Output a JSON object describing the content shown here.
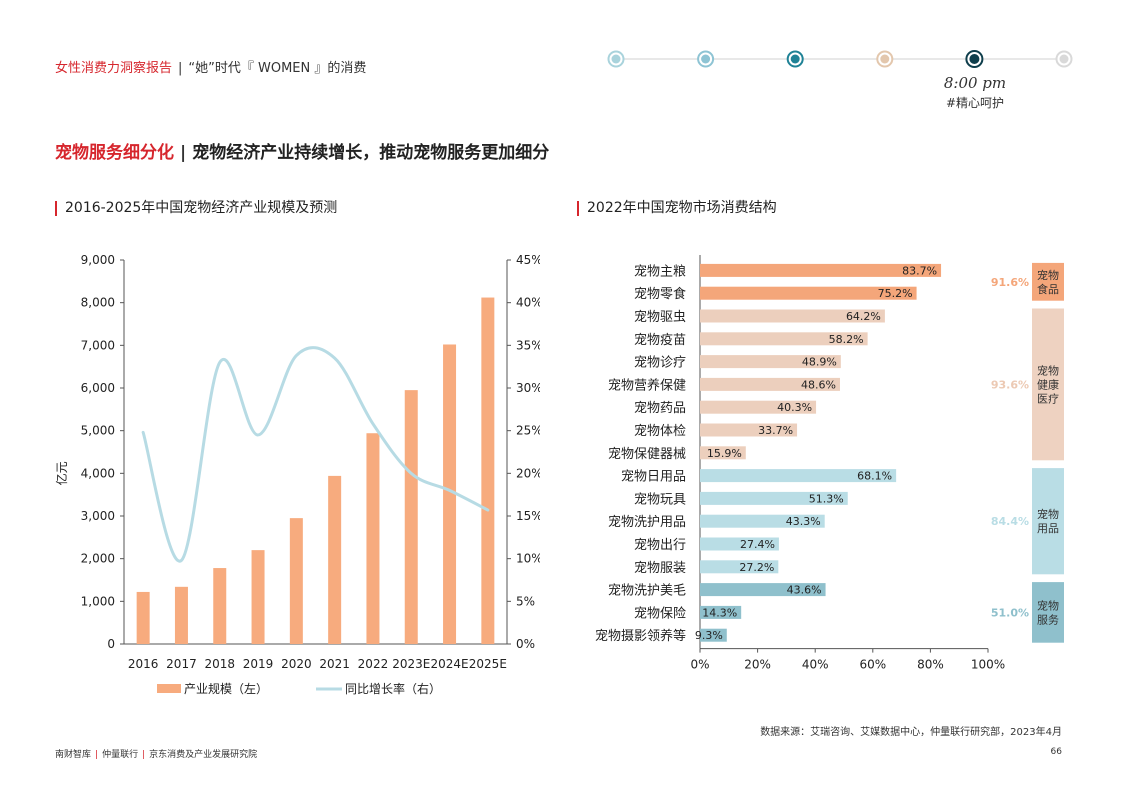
{
  "header": {
    "brand": "女性消费力洞察报告",
    "separator": "|",
    "subtitle": "“她”时代『 WOMEN 』的消费",
    "timeline": {
      "active_index": 4,
      "dot_colors": [
        "#a9d3dc",
        "#8ec4d4",
        "#1f8296",
        "#e3c7ad",
        "#0f3e4c",
        "#d9d9d9"
      ]
    },
    "time_text": "8:00 pm",
    "time_tag": "#精心呵护"
  },
  "page_title": {
    "highlight": "宠物服务细分化",
    "separator": "|",
    "rest": "宠物经济产业持续增长，推动宠物服务更加细分"
  },
  "colors": {
    "red": "#d6262d",
    "bar_orange": "#f7ab7e",
    "line_blue": "#b7dbe4",
    "food_bar": "#f4a67a",
    "health_bar": "#eccfbd",
    "goods_bar": "#b9dde5",
    "service_bar": "#8fc0cc"
  },
  "chart_data": [
    {
      "type": "bar",
      "title": "2016-2025年中国宠物经济产业规模及预测",
      "categories": [
        "2016",
        "2017",
        "2018",
        "2019",
        "2020",
        "2021",
        "2022",
        "2023E",
        "2024E",
        "2025E"
      ],
      "series": [
        {
          "name": "产业规模（左）",
          "type": "bar",
          "axis": "left",
          "values": [
            1220,
            1340,
            1780,
            2200,
            2950,
            3940,
            4940,
            5950,
            7020,
            8120
          ]
        },
        {
          "name": "同比增长率（右）",
          "type": "line",
          "axis": "right",
          "values": [
            24.8,
            9.8,
            33.0,
            24.5,
            33.8,
            33.5,
            25.8,
            20.0,
            18.0,
            15.7
          ]
        }
      ],
      "ylabel": "亿元",
      "ylim": [
        0,
        9000
      ],
      "yticks": [
        "0",
        "1,000",
        "2,000",
        "3,000",
        "4,000",
        "5,000",
        "6,000",
        "7,000",
        "8,000",
        "9,000"
      ],
      "y2lim": [
        0,
        45
      ],
      "y2ticks": [
        "0%",
        "5%",
        "10%",
        "15%",
        "20%",
        "25%",
        "30%",
        "35%",
        "40%",
        "45%"
      ],
      "grid": false,
      "legend_placement": "bottom"
    },
    {
      "type": "bar",
      "orientation": "horizontal",
      "title": "2022年中国宠物市场消费结构",
      "categories": [
        "宠物主粮",
        "宠物零食",
        "宠物驱虫",
        "宠物疫苗",
        "宠物诊疗",
        "宠物营养保健",
        "宠物药品",
        "宠物体检",
        "宠物保健器械",
        "宠物日用品",
        "宠物玩具",
        "宠物洗护用品",
        "宠物出行",
        "宠物服装",
        "宠物洗护美毛",
        "宠物保险",
        "宠物摄影领养等"
      ],
      "values": [
        83.7,
        75.2,
        64.2,
        58.2,
        48.9,
        48.6,
        40.3,
        33.7,
        15.9,
        68.1,
        51.3,
        43.3,
        27.4,
        27.2,
        43.6,
        14.3,
        9.3
      ],
      "value_labels": [
        "83.7%",
        "75.2%",
        "64.2%",
        "58.2%",
        "48.9%",
        "48.6%",
        "40.3%",
        "33.7%",
        "15.9%",
        "68.1%",
        "51.3%",
        "43.3%",
        "27.4%",
        "27.2%",
        "43.6%",
        "14.3%",
        "9.3%"
      ],
      "group_of_category": [
        0,
        0,
        1,
        1,
        1,
        1,
        1,
        1,
        1,
        2,
        2,
        2,
        2,
        2,
        3,
        3,
        3
      ],
      "groups": [
        {
          "label": "宠物食品",
          "total": "91.6%",
          "color": "#f4a67a",
          "label_bg": "#f4a67a",
          "total_color": "#f4a67a"
        },
        {
          "label": "宠物健康医疗",
          "total": "93.6%",
          "color": "#eccfbd",
          "label_bg": "#eed2c1",
          "total_color": "#ecc9b3"
        },
        {
          "label": "宠物用品",
          "total": "84.4%",
          "color": "#b9dde5",
          "label_bg": "#b9dde5",
          "total_color": "#b9dde5"
        },
        {
          "label": "宠物服务",
          "total": "51.0%",
          "color": "#8fc0cc",
          "label_bg": "#8fc0cc",
          "total_color": "#8fc0cc"
        }
      ],
      "xlim": [
        0,
        100
      ],
      "xticks": [
        "0%",
        "20%",
        "40%",
        "60%",
        "80%",
        "100%"
      ],
      "grid": false
    }
  ],
  "source_note": "数据来源：艾瑞咨询、艾媒数据中心，仲量联行研究部，2023年4月",
  "footer": {
    "items": [
      "南财智库",
      "仲量联行",
      "京东消费及产业发展研究院"
    ],
    "separator": "|"
  },
  "page_number": "66"
}
